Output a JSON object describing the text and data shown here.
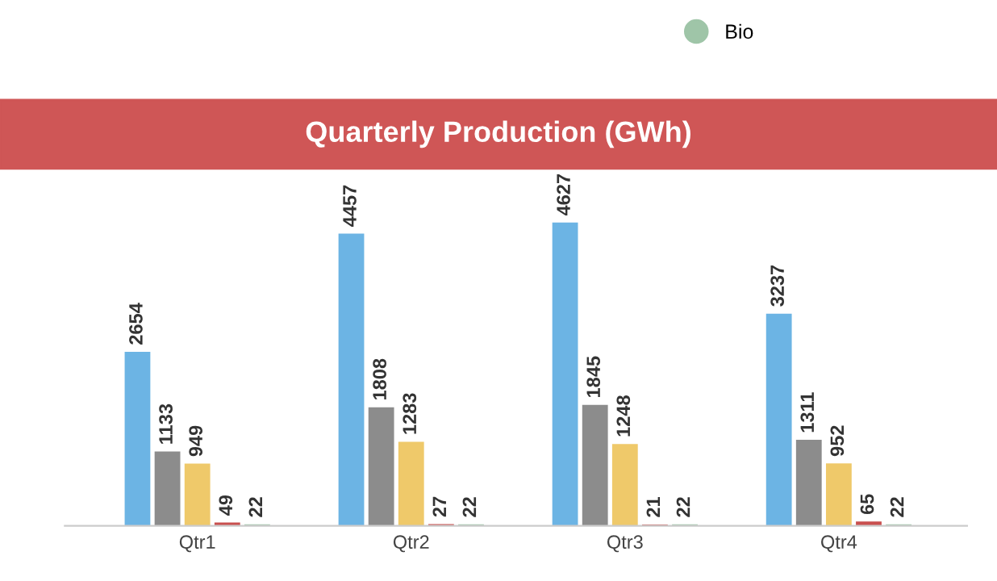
{
  "chart_data": {
    "type": "bar",
    "title": "Quarterly Production (GWh)",
    "categories": [
      "Qtr1",
      "Qtr2",
      "Qtr3",
      "Qtr4"
    ],
    "series": [
      {
        "color": "#6cb4e4",
        "values": [
          2654,
          4457,
          4627,
          3237
        ]
      },
      {
        "color": "#8c8c8c",
        "values": [
          1133,
          1808,
          1845,
          1311
        ]
      },
      {
        "color": "#efc96a",
        "values": [
          949,
          1283,
          1248,
          952
        ]
      },
      {
        "color": "#c9504f",
        "values": [
          49,
          27,
          21,
          65
        ]
      },
      {
        "name": "Bio",
        "color": "#9fc5a8",
        "values": [
          22,
          22,
          22,
          22
        ]
      }
    ],
    "data_labels": true,
    "legend": "top right",
    "grid": false
  }
}
